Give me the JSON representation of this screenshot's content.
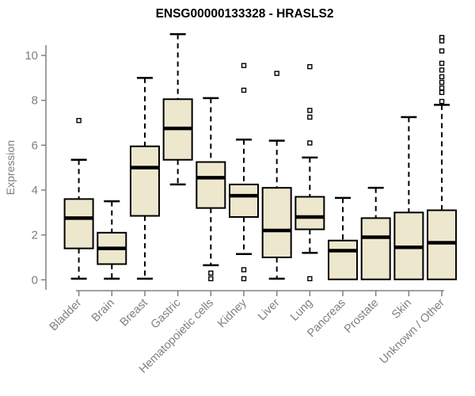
{
  "title": "ENSG00000133328 - HRASLS2",
  "chart_data": {
    "type": "boxplot",
    "title": "ENSG00000133328 - HRASLS2",
    "xlabel": "",
    "ylabel": "Expression",
    "ylim": [
      0,
      10
    ],
    "yticks": [
      0,
      2,
      4,
      6,
      8,
      10
    ],
    "grid": false,
    "legend": "none",
    "categories": [
      "Bladder",
      "Brain",
      "Breast",
      "Gastric",
      "Hematopoietic cells",
      "Kidney",
      "Liver",
      "Lung",
      "Pancreas",
      "Prostate",
      "Skin",
      "Unknown / Other"
    ],
    "series": [
      {
        "category": "Bladder",
        "whisker_low": 0.05,
        "q1": 1.4,
        "median": 2.75,
        "q3": 3.6,
        "whisker_high": 5.35,
        "outliers": [
          7.1
        ]
      },
      {
        "category": "Brain",
        "whisker_low": 0.05,
        "q1": 0.7,
        "median": 1.4,
        "q3": 2.1,
        "whisker_high": 3.5,
        "outliers": []
      },
      {
        "category": "Breast",
        "whisker_low": 0.05,
        "q1": 2.85,
        "median": 5.0,
        "q3": 5.95,
        "whisker_high": 9.0,
        "outliers": []
      },
      {
        "category": "Gastric",
        "whisker_low": 4.25,
        "q1": 5.35,
        "median": 6.75,
        "q3": 8.05,
        "whisker_high": 10.95,
        "outliers": []
      },
      {
        "category": "Hematopoietic cells",
        "whisker_low": 0.65,
        "q1": 3.2,
        "median": 4.55,
        "q3": 5.25,
        "whisker_high": 8.1,
        "outliers": [
          0.3,
          0.05
        ]
      },
      {
        "category": "Kidney",
        "whisker_low": 1.15,
        "q1": 2.8,
        "median": 3.75,
        "q3": 4.25,
        "whisker_high": 6.25,
        "outliers": [
          9.55,
          8.45,
          0.45,
          0.05
        ]
      },
      {
        "category": "Liver",
        "whisker_low": 0.05,
        "q1": 1.0,
        "median": 2.2,
        "q3": 4.1,
        "whisker_high": 6.2,
        "outliers": [
          9.2
        ]
      },
      {
        "category": "Lung",
        "whisker_low": 1.2,
        "q1": 2.25,
        "median": 2.8,
        "q3": 3.7,
        "whisker_high": 5.45,
        "outliers": [
          9.5,
          7.55,
          7.25,
          6.1,
          0.05
        ]
      },
      {
        "category": "Pancreas",
        "whisker_low": 0.02,
        "q1": 0.02,
        "median": 1.3,
        "q3": 1.75,
        "whisker_high": 3.65,
        "outliers": []
      },
      {
        "category": "Prostate",
        "whisker_low": 0.02,
        "q1": 0.02,
        "median": 1.9,
        "q3": 2.75,
        "whisker_high": 4.1,
        "outliers": []
      },
      {
        "category": "Skin",
        "whisker_low": 0.02,
        "q1": 0.02,
        "median": 1.45,
        "q3": 3.0,
        "whisker_high": 7.25,
        "outliers": []
      },
      {
        "category": "Unknown / Other",
        "whisker_low": 0.02,
        "q1": 0.02,
        "median": 1.65,
        "q3": 3.1,
        "whisker_high": 7.8,
        "outliers": [
          10.8,
          10.65,
          10.2,
          9.65,
          9.35,
          9.05,
          8.8,
          8.55,
          8.35,
          7.95
        ]
      }
    ],
    "colors": {
      "box_fill": "#EDE8CD",
      "box_stroke": "#000000",
      "median": "#000000",
      "whisker": "#000000",
      "outlier_stroke": "#000000",
      "axis": "#808080",
      "tick_label": "#7F7F7F",
      "title": "#000000",
      "background": "#FFFFFF"
    }
  }
}
